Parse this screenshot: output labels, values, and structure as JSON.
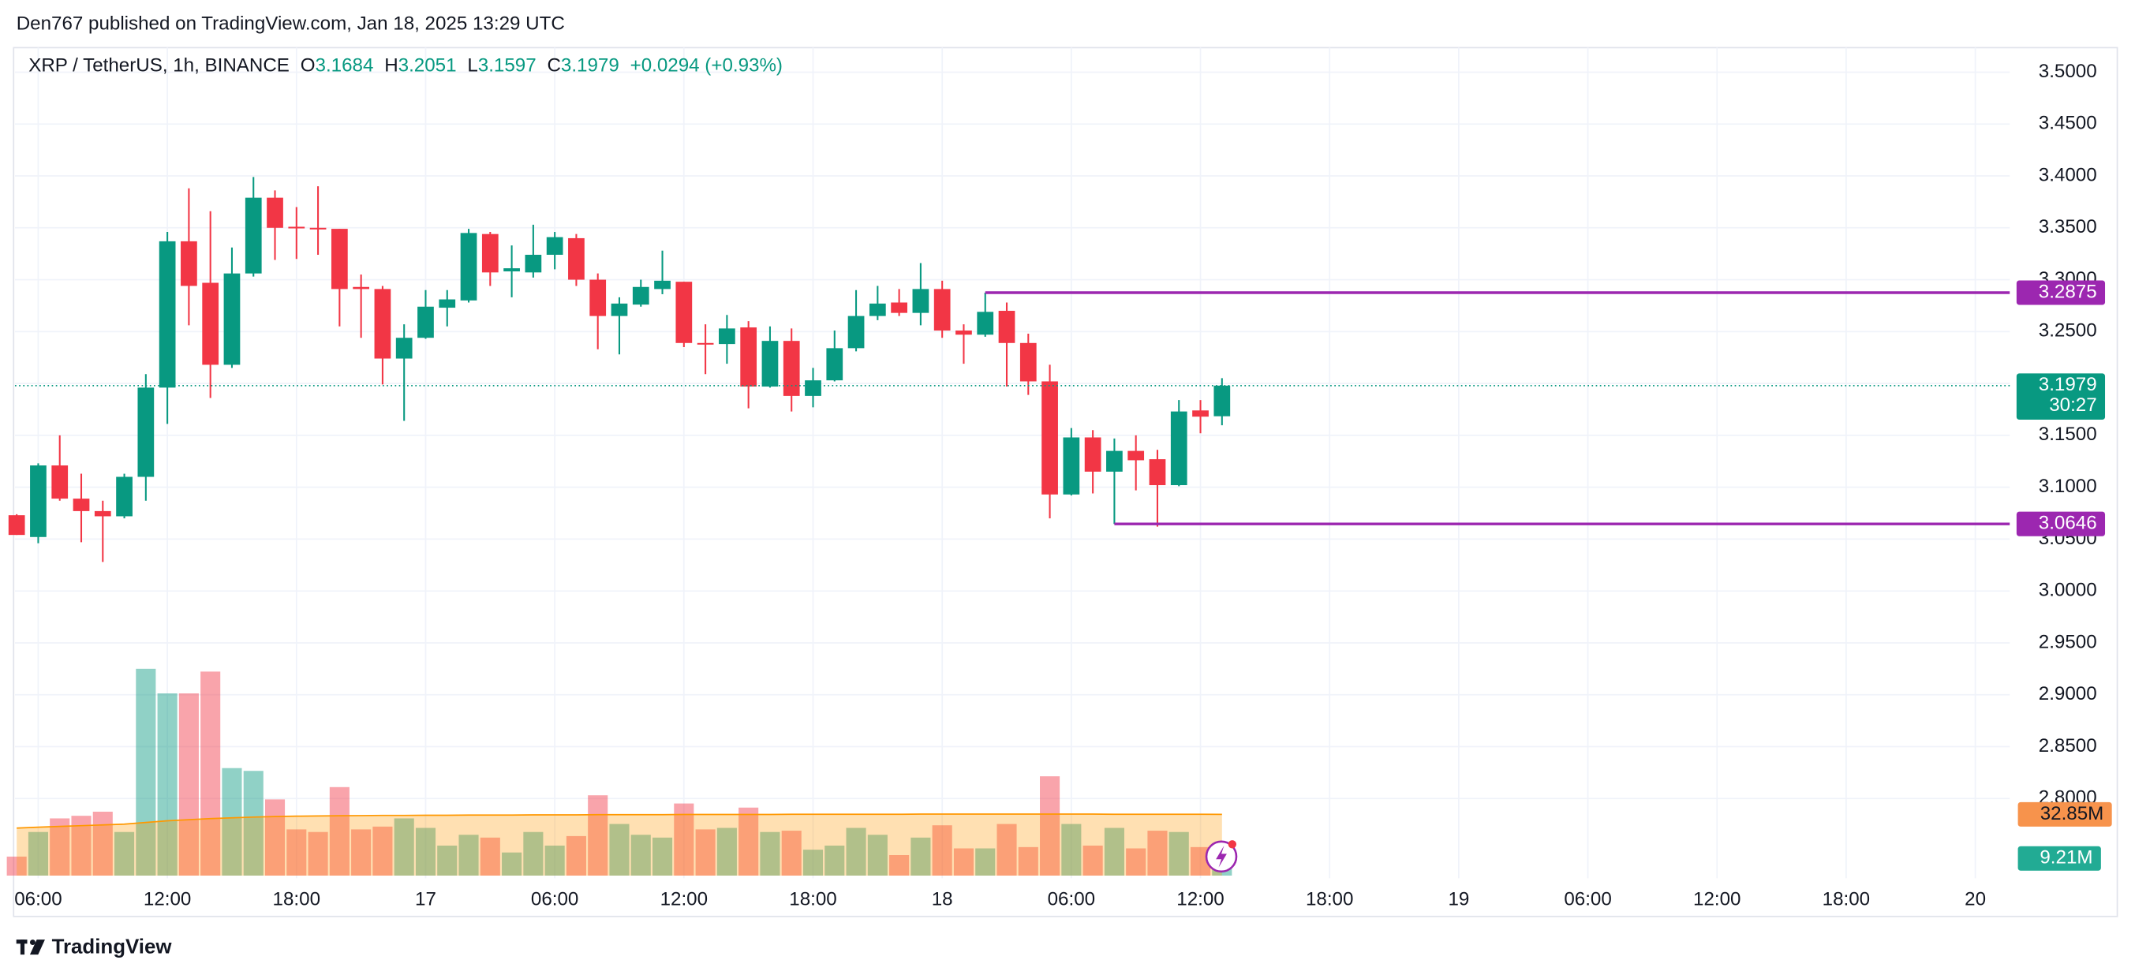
{
  "header": {
    "published": "Den767 published on TradingView.com, Jan 18, 2025 13:29 UTC"
  },
  "chart_data": {
    "type": "candlestick",
    "symbol": "XRP / TetherUS, 1h, BINANCE",
    "legend_labels": {
      "open": "O",
      "high": "H",
      "low": "L",
      "close": "C"
    },
    "change": "+0.0294 (+0.93%)",
    "x": [
      5,
      6,
      7,
      8,
      9,
      10,
      11,
      12,
      13,
      14,
      15,
      16,
      17,
      18,
      19,
      20,
      21,
      22,
      23,
      24,
      25,
      26,
      27,
      28,
      29,
      30,
      31,
      32,
      33,
      34,
      35,
      36,
      37,
      38,
      39,
      40,
      41,
      42,
      43,
      44,
      45,
      46,
      47,
      48,
      49,
      50,
      51,
      52,
      53,
      54,
      55,
      56,
      57,
      58,
      59,
      60,
      61
    ],
    "open": [
      3.073,
      3.052,
      3.121,
      3.089,
      3.077,
      3.072,
      3.11,
      3.196,
      3.337,
      3.297,
      3.218,
      3.306,
      3.379,
      3.351,
      3.35,
      3.349,
      3.293,
      3.291,
      3.224,
      3.244,
      3.273,
      3.28,
      3.344,
      3.308,
      3.307,
      3.324,
      3.34,
      3.3,
      3.265,
      3.276,
      3.291,
      3.298,
      3.239,
      3.238,
      3.254,
      3.197,
      3.241,
      3.188,
      3.203,
      3.234,
      3.265,
      3.278,
      3.268,
      3.291,
      3.251,
      3.247,
      3.27,
      3.239,
      3.202,
      3.093,
      3.148,
      3.115,
      3.135,
      3.127,
      3.102,
      3.174,
      3.1684
    ],
    "high": [
      3.074,
      3.123,
      3.15,
      3.113,
      3.087,
      3.113,
      3.209,
      3.346,
      3.388,
      3.366,
      3.331,
      3.399,
      3.386,
      3.37,
      3.39,
      3.349,
      3.305,
      3.294,
      3.257,
      3.29,
      3.29,
      3.349,
      3.346,
      3.333,
      3.353,
      3.346,
      3.344,
      3.306,
      3.283,
      3.3,
      3.328,
      3.298,
      3.257,
      3.266,
      3.26,
      3.255,
      3.253,
      3.215,
      3.251,
      3.29,
      3.294,
      3.291,
      3.316,
      3.299,
      3.257,
      3.2875,
      3.278,
      3.248,
      3.218,
      3.157,
      3.155,
      3.147,
      3.15,
      3.136,
      3.184,
      3.184,
      3.2051
    ],
    "low": [
      3.054,
      3.046,
      3.087,
      3.047,
      3.028,
      3.07,
      3.087,
      3.161,
      3.256,
      3.186,
      3.215,
      3.303,
      3.319,
      3.32,
      3.324,
      3.255,
      3.244,
      3.199,
      3.164,
      3.243,
      3.255,
      3.278,
      3.294,
      3.283,
      3.302,
      3.31,
      3.294,
      3.233,
      3.228,
      3.274,
      3.286,
      3.235,
      3.209,
      3.219,
      3.176,
      3.196,
      3.173,
      3.177,
      3.202,
      3.231,
      3.261,
      3.265,
      3.256,
      3.244,
      3.219,
      3.245,
      3.197,
      3.189,
      3.07,
      3.092,
      3.094,
      3.0646,
      3.097,
      3.062,
      3.101,
      3.152,
      3.1597
    ],
    "close": [
      3.054,
      3.121,
      3.089,
      3.077,
      3.072,
      3.11,
      3.196,
      3.337,
      3.294,
      3.218,
      3.306,
      3.379,
      3.35,
      3.35,
      3.349,
      3.291,
      3.291,
      3.224,
      3.244,
      3.274,
      3.281,
      3.345,
      3.307,
      3.311,
      3.324,
      3.341,
      3.3,
      3.265,
      3.277,
      3.293,
      3.299,
      3.239,
      3.238,
      3.253,
      3.197,
      3.241,
      3.188,
      3.203,
      3.234,
      3.265,
      3.277,
      3.268,
      3.291,
      3.251,
      3.247,
      3.269,
      3.239,
      3.202,
      3.093,
      3.148,
      3.115,
      3.135,
      3.126,
      3.102,
      3.173,
      3.168,
      3.1979
    ],
    "up_color": "#089981",
    "down_color": "#f23645",
    "volume": {
      "values": [
        10.2,
        23.4,
        30.7,
        32.1,
        34.3,
        23.4,
        111,
        97.8,
        97.8,
        109.5,
        57.7,
        56.2,
        40.9,
        24.8,
        23.4,
        47.5,
        24.8,
        26.3,
        30.7,
        25.6,
        16.1,
        21.9,
        20.4,
        12.4,
        23.4,
        16.1,
        21.2,
        43.1,
        27.7,
        21.9,
        20.4,
        38.7,
        24.8,
        25.6,
        36.5,
        23.4,
        24.1,
        13.9,
        16.1,
        25.6,
        21.9,
        11.0,
        20.4,
        27.0,
        14.6,
        14.6,
        27.7,
        15.3,
        53.3,
        27.7,
        16.1,
        25.6,
        14.6,
        24.1,
        23.4,
        15.3,
        9.21
      ],
      "value_labels": [
        null,
        null,
        null,
        null,
        null,
        null,
        null,
        null,
        null,
        null,
        null,
        null,
        null,
        null,
        null,
        null,
        null,
        null,
        null,
        null,
        null,
        null,
        null,
        null,
        null,
        null,
        null,
        null,
        null,
        null,
        null,
        null,
        null,
        null,
        null,
        null,
        null,
        null,
        null,
        null,
        null,
        null,
        null,
        null,
        null,
        null,
        null,
        null,
        null,
        null,
        null,
        null,
        null,
        null,
        null,
        null,
        "9.21M"
      ],
      "up_color": "rgba(8,153,129,0.45)",
      "down_color": "rgba(242,54,69,0.45)",
      "label_color": "#22ab94"
    },
    "volume_ma": {
      "values": [
        25.5,
        26.0,
        26.4,
        26.8,
        27.2,
        27.6,
        28.5,
        29.4,
        30.0,
        30.6,
        31.0,
        31.4,
        31.7,
        31.9,
        32.0,
        32.1,
        32.2,
        32.3,
        32.3,
        32.4,
        32.4,
        32.5,
        32.5,
        32.5,
        32.6,
        32.6,
        32.6,
        32.7,
        32.7,
        32.7,
        32.7,
        32.8,
        32.8,
        32.8,
        32.8,
        32.8,
        32.9,
        32.9,
        32.9,
        32.9,
        32.9,
        32.9,
        33.0,
        33.0,
        33.0,
        33.0,
        33.0,
        33.0,
        33.0,
        33.0,
        33.0,
        32.9,
        32.9,
        32.9,
        32.9,
        32.9,
        32.85
      ],
      "value_labels": [
        null,
        null,
        null,
        null,
        null,
        null,
        null,
        null,
        null,
        null,
        null,
        null,
        null,
        null,
        null,
        null,
        null,
        null,
        null,
        null,
        null,
        null,
        null,
        null,
        null,
        null,
        null,
        null,
        null,
        null,
        null,
        null,
        null,
        null,
        null,
        null,
        null,
        null,
        null,
        null,
        null,
        null,
        null,
        null,
        null,
        null,
        null,
        null,
        null,
        null,
        null,
        null,
        null,
        null,
        null,
        null,
        "32.85M"
      ],
      "color": "#ff9800",
      "fill": "rgba(255,152,0,0.3)",
      "label_color": "#f7934c"
    },
    "vlim": [
      0,
      440
    ],
    "xlim": [
      4.92,
      97.6
    ],
    "xticks": [
      {
        "value": 6,
        "label": "06:00"
      },
      {
        "value": 12,
        "label": "12:00"
      },
      {
        "value": 18,
        "label": "18:00"
      },
      {
        "value": 24,
        "label": "17"
      },
      {
        "value": 30,
        "label": "06:00"
      },
      {
        "value": 36,
        "label": "12:00"
      },
      {
        "value": 42,
        "label": "18:00"
      },
      {
        "value": 48,
        "label": "18"
      },
      {
        "value": 54,
        "label": "06:00"
      },
      {
        "value": 60,
        "label": "12:00"
      },
      {
        "value": 66,
        "label": "18:00"
      },
      {
        "value": 72,
        "label": "19"
      },
      {
        "value": 78,
        "label": "06:00"
      },
      {
        "value": 84,
        "label": "12:00"
      },
      {
        "value": 90,
        "label": "18:00"
      },
      {
        "value": 96,
        "label": "20"
      }
    ],
    "ylim": [
      2.7231,
      3.5236
    ],
    "yticks": [
      {
        "value": 2.8,
        "label": "2.8000"
      },
      {
        "value": 2.85,
        "label": "2.8500"
      },
      {
        "value": 2.9,
        "label": "2.9000"
      },
      {
        "value": 2.95,
        "label": "2.9500"
      },
      {
        "value": 3.0,
        "label": "3.0000"
      },
      {
        "value": 3.05,
        "label": "3.0500"
      },
      {
        "value": 3.1,
        "label": "3.1000"
      },
      {
        "value": 3.15,
        "label": "3.1500"
      },
      {
        "value": 3.2,
        "label": "3.2000"
      },
      {
        "value": 3.25,
        "label": "3.2500"
      },
      {
        "value": 3.3,
        "label": "3.3000"
      },
      {
        "value": 3.35,
        "label": "3.3500"
      },
      {
        "value": 3.4,
        "label": "3.4000"
      },
      {
        "value": 3.45,
        "label": "3.4500"
      },
      {
        "value": 3.5,
        "label": "3.5000"
      }
    ],
    "grid": true,
    "hlines": [
      {
        "value": 3.2875,
        "from": 50,
        "color": "#9c27b0"
      },
      {
        "value": 3.0646,
        "from": 56,
        "color": "#9c27b0"
      }
    ],
    "countdown": "30:27"
  },
  "footer": {
    "brand": "TradingView"
  }
}
